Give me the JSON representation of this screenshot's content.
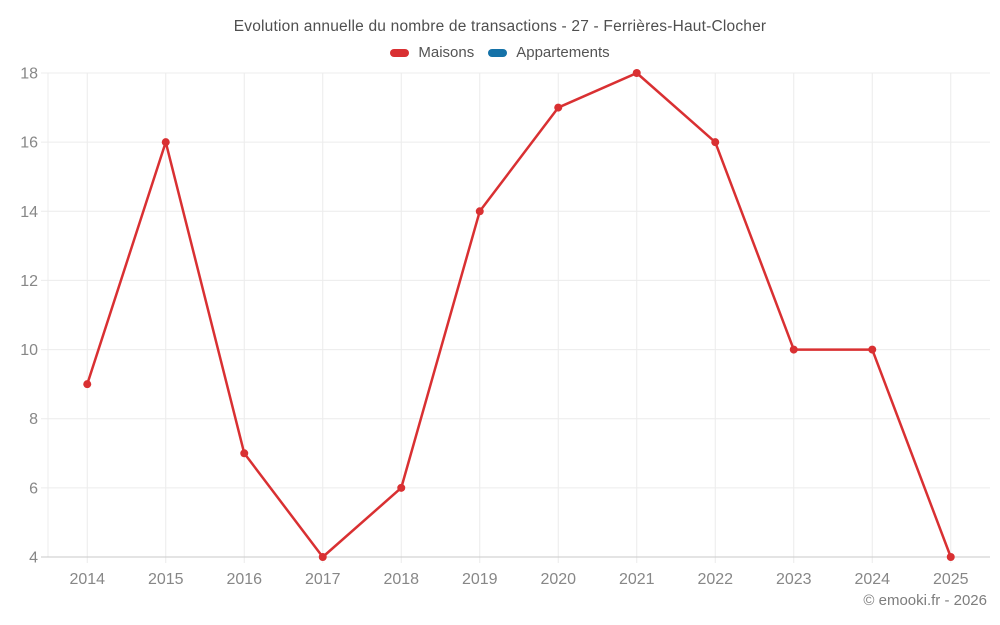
{
  "header": {
    "title": "Evolution annuelle du nombre de transactions - 27 - Ferrières-Haut-Clocher"
  },
  "legend": {
    "items": [
      {
        "label": "Maisons",
        "color": "#d93032"
      },
      {
        "label": "Appartements",
        "color": "#1572a8"
      }
    ]
  },
  "footer": {
    "copyright": "© emooki.fr - 2026"
  },
  "style": {
    "grid_color": "#ececec",
    "axis_line_color": "#c9c9c9",
    "tick_mark_color": "#e0e0e0",
    "tick_label_color": "#878787",
    "title_color": "#4f4f4f",
    "legend_label_color": "#545454",
    "footer_color": "#7d7d7d",
    "background": "#ffffff"
  },
  "chart_data": {
    "type": "line",
    "title": "Evolution annuelle du nombre de transactions - 27 - Ferrières-Haut-Clocher",
    "categories": [
      "2014",
      "2015",
      "2016",
      "2017",
      "2018",
      "2019",
      "2020",
      "2021",
      "2022",
      "2023",
      "2024",
      "2025"
    ],
    "series": [
      {
        "name": "Maisons",
        "color": "#d93032",
        "values": [
          9,
          16,
          7,
          4,
          6,
          14,
          17,
          18,
          16,
          10,
          10,
          4
        ]
      },
      {
        "name": "Appartements",
        "color": "#1572a8",
        "values": []
      }
    ],
    "xlabel": "",
    "ylabel": "",
    "ylim": [
      4,
      18
    ],
    "ytick_step": 2,
    "grid": true,
    "legend_position": "top",
    "point_radius": 4,
    "line_width": 2.5
  }
}
